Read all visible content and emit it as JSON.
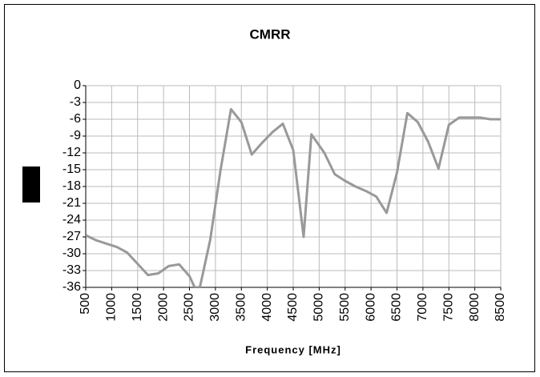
{
  "chart_data": {
    "type": "line",
    "title": "CMRR",
    "x_label": "Frequency [MHz]",
    "series": [
      {
        "name": "CMRR",
        "color": "#999999",
        "x": [
          500,
          700,
          900,
          1100,
          1300,
          1500,
          1700,
          1900,
          2100,
          2300,
          2500,
          2600,
          2700,
          2900,
          3100,
          3300,
          3500,
          3700,
          3900,
          4100,
          4300,
          4500,
          4700,
          4850,
          5100,
          5300,
          5500,
          5700,
          5900,
          6100,
          6300,
          6500,
          6700,
          6900,
          7100,
          7300,
          7500,
          7700,
          7900,
          8100,
          8300,
          8500
        ],
        "values": [
          -26.7,
          -27.6,
          -28.2,
          -28.8,
          -29.8,
          -31.8,
          -33.8,
          -33.5,
          -32.2,
          -31.9,
          -34,
          -36,
          -36,
          -27.5,
          -15,
          -4.2,
          -6.5,
          -12.3,
          -10.2,
          -8.3,
          -6.8,
          -11.5,
          -27,
          -8.7,
          -12,
          -15.8,
          -17,
          -18,
          -18.8,
          -19.8,
          -22.7,
          -15.5,
          -4.9,
          -6.5,
          -10,
          -14.8,
          -7,
          -5.7,
          -5.7,
          -5.7,
          -6,
          -6
        ]
      }
    ],
    "xlim": [
      500,
      8500
    ],
    "xticks": [
      500,
      1000,
      1500,
      2000,
      2500,
      3000,
      3500,
      4000,
      4500,
      5000,
      5500,
      6000,
      6500,
      7000,
      7500,
      8000,
      8500
    ],
    "ylim": [
      -36,
      0
    ],
    "yticks": [
      0,
      -3,
      -6,
      -9,
      -12,
      -15,
      -18,
      -21,
      -24,
      -27,
      -30,
      -33,
      -36
    ],
    "grid": true
  }
}
